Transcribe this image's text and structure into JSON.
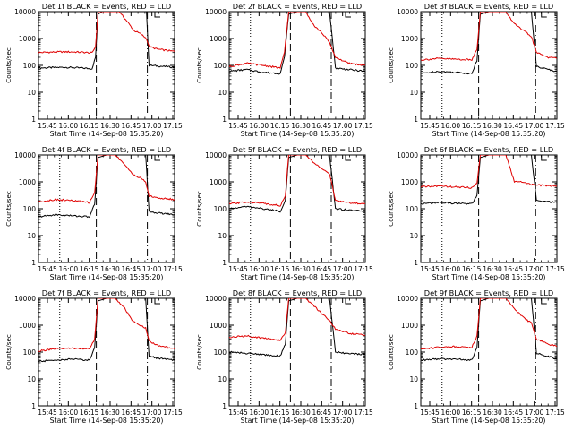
{
  "colors": {
    "events": "#000000",
    "lld": "#e00000",
    "axis": "#000000"
  },
  "chart_data": [
    {
      "type": "line",
      "title": "Det 1f BLACK = Events, RED = LLD",
      "xlabel": "Start Time (14-Sep-08 15:35:20)",
      "ylabel": "Counts/sec",
      "yscale": "log",
      "ylim": [
        1,
        10000
      ],
      "xlim": [
        15.7,
        17.3
      ],
      "xticks": [
        "15:45",
        "16:00",
        "16:15",
        "16:30",
        "16:45",
        "17:00",
        "17:15"
      ],
      "yticks": [
        "1",
        "10",
        "100",
        "1000",
        "10000"
      ],
      "dotted_line_x": 16.0,
      "dashed_line_x": 16.38,
      "dashdot_line_x": 16.98,
      "marker_x": 17.1,
      "series": [
        {
          "name": "Events",
          "x": [
            15.7,
            16.0,
            16.2,
            16.33,
            16.37,
            16.4,
            16.45,
            16.55,
            16.65,
            16.75,
            16.82,
            16.9,
            16.97,
            17.0,
            17.1,
            17.3
          ],
          "y": [
            80,
            85,
            80,
            75,
            200,
            8000,
            10000,
            10000,
            10000,
            10000,
            10000,
            10000,
            10000,
            100,
            95,
            85
          ]
        },
        {
          "name": "LLD",
          "x": [
            15.7,
            16.0,
            16.2,
            16.33,
            16.37,
            16.4,
            16.45,
            16.55,
            16.65,
            16.75,
            16.82,
            16.9,
            16.97,
            17.0,
            17.1,
            17.3
          ],
          "y": [
            300,
            320,
            310,
            290,
            500,
            10000,
            10000,
            10000,
            10000,
            4000,
            2000,
            1500,
            1000,
            500,
            400,
            330
          ]
        }
      ]
    },
    {
      "type": "line",
      "title": "Det 2f BLACK = Events, RED = LLD",
      "xlabel": "Start Time (14-Sep-08 15:35:20)",
      "ylabel": "Counts/sec",
      "yscale": "log",
      "ylim": [
        1,
        10000
      ],
      "xlim": [
        15.7,
        17.3
      ],
      "xticks": [
        "15:45",
        "16:00",
        "16:15",
        "16:30",
        "16:45",
        "17:00",
        "17:15"
      ],
      "yticks": [
        "1",
        "10",
        "100",
        "1000",
        "10000"
      ],
      "dotted_line_x": 15.95,
      "dashed_line_x": 16.42,
      "dashdot_line_x": 16.9,
      "marker_x": 17.1,
      "series": [
        {
          "name": "Events",
          "x": [
            15.7,
            15.9,
            16.1,
            16.3,
            16.35,
            16.4,
            16.5,
            16.6,
            16.7,
            16.8,
            16.88,
            16.95,
            17.1,
            17.3
          ],
          "y": [
            60,
            70,
            55,
            50,
            200,
            8000,
            10000,
            10000,
            10000,
            10000,
            10000,
            80,
            70,
            60
          ]
        },
        {
          "name": "LLD",
          "x": [
            15.7,
            15.9,
            16.1,
            16.3,
            16.35,
            16.4,
            16.5,
            16.6,
            16.7,
            16.8,
            16.88,
            16.95,
            17.1,
            17.3
          ],
          "y": [
            90,
            120,
            100,
            80,
            300,
            10000,
            10000,
            10000,
            3000,
            1500,
            700,
            200,
            120,
            100
          ]
        }
      ]
    },
    {
      "type": "line",
      "title": "Det 3f BLACK = Events, RED = LLD",
      "xlabel": "Start Time (14-Sep-08 15:35:20)",
      "ylabel": "Counts/sec",
      "yscale": "log",
      "ylim": [
        1,
        10000
      ],
      "xlim": [
        15.7,
        17.3
      ],
      "xticks": [
        "15:45",
        "16:00",
        "16:15",
        "16:30",
        "16:45",
        "17:00",
        "17:15"
      ],
      "yticks": [
        "1",
        "10",
        "100",
        "1000",
        "10000"
      ],
      "dotted_line_x": 15.95,
      "dashed_line_x": 16.38,
      "dashdot_line_x": 17.05,
      "marker_x": 17.15,
      "series": [
        {
          "name": "Events",
          "x": [
            15.7,
            15.9,
            16.1,
            16.3,
            16.36,
            16.4,
            16.5,
            16.6,
            16.7,
            16.8,
            16.9,
            17.0,
            17.06,
            17.2,
            17.3
          ],
          "y": [
            50,
            60,
            55,
            50,
            150,
            8000,
            10000,
            10000,
            10000,
            10000,
            10000,
            10000,
            90,
            70,
            60
          ]
        },
        {
          "name": "LLD",
          "x": [
            15.7,
            15.9,
            16.1,
            16.3,
            16.36,
            16.4,
            16.5,
            16.6,
            16.7,
            16.8,
            16.9,
            17.0,
            17.06,
            17.2,
            17.3
          ],
          "y": [
            160,
            180,
            170,
            160,
            400,
            10000,
            10000,
            10000,
            10000,
            3500,
            2000,
            1200,
            300,
            200,
            180
          ]
        }
      ]
    },
    {
      "type": "line",
      "title": "Det 4f BLACK = Events, RED = LLD",
      "xlabel": "Start Time (14-Sep-08 15:35:20)",
      "ylabel": "Counts/sec",
      "yscale": "log",
      "ylim": [
        1,
        10000
      ],
      "xlim": [
        15.7,
        17.3
      ],
      "xticks": [
        "15:45",
        "16:00",
        "16:15",
        "16:30",
        "16:45",
        "17:00",
        "17:15"
      ],
      "yticks": [
        "1",
        "10",
        "100",
        "1000",
        "10000"
      ],
      "dotted_line_x": 15.95,
      "dashed_line_x": 16.38,
      "dashdot_line_x": 16.98,
      "marker_x": 17.1,
      "series": [
        {
          "name": "Events",
          "x": [
            15.7,
            15.9,
            16.1,
            16.3,
            16.36,
            16.4,
            16.5,
            16.6,
            16.7,
            16.8,
            16.88,
            16.96,
            17.0,
            17.1,
            17.3
          ],
          "y": [
            50,
            60,
            55,
            50,
            150,
            8000,
            10000,
            10000,
            10000,
            10000,
            10000,
            10000,
            80,
            70,
            60
          ]
        },
        {
          "name": "LLD",
          "x": [
            15.7,
            15.9,
            16.1,
            16.3,
            16.36,
            16.4,
            16.5,
            16.6,
            16.7,
            16.8,
            16.88,
            16.96,
            17.0,
            17.1,
            17.3
          ],
          "y": [
            180,
            220,
            200,
            170,
            400,
            10000,
            10000,
            10000,
            5000,
            2000,
            1500,
            1000,
            300,
            250,
            220
          ]
        }
      ]
    },
    {
      "type": "line",
      "title": "Det 5f BLACK = Events, RED = LLD",
      "xlabel": "Start Time (14-Sep-08 15:35:20)",
      "ylabel": "Counts/sec",
      "yscale": "log",
      "ylim": [
        1,
        10000
      ],
      "xlim": [
        15.7,
        17.3
      ],
      "xticks": [
        "15:45",
        "16:00",
        "16:15",
        "16:30",
        "16:45",
        "17:00",
        "17:15"
      ],
      "yticks": [
        "1",
        "10",
        "100",
        "1000",
        "10000"
      ],
      "dotted_line_x": 15.95,
      "dashed_line_x": 16.42,
      "dashdot_line_x": 16.9,
      "marker_x": 17.1,
      "series": [
        {
          "name": "Events",
          "x": [
            15.7,
            15.9,
            16.1,
            16.3,
            16.36,
            16.4,
            16.5,
            16.6,
            16.7,
            16.8,
            16.88,
            16.95,
            17.1,
            17.3
          ],
          "y": [
            100,
            120,
            100,
            80,
            200,
            8000,
            10000,
            10000,
            10000,
            10000,
            10000,
            100,
            90,
            80
          ]
        },
        {
          "name": "LLD",
          "x": [
            15.7,
            15.9,
            16.1,
            16.3,
            16.36,
            16.4,
            16.5,
            16.6,
            16.7,
            16.8,
            16.88,
            16.95,
            17.1,
            17.3
          ],
          "y": [
            150,
            180,
            160,
            130,
            300,
            10000,
            10000,
            10000,
            5000,
            3000,
            2000,
            200,
            170,
            150
          ]
        }
      ]
    },
    {
      "type": "line",
      "title": "Det 6f BLACK = Events, RED = LLD",
      "xlabel": "Start Time (14-Sep-08 15:35:20)",
      "ylabel": "Counts/sec",
      "yscale": "log",
      "ylim": [
        1,
        10000
      ],
      "xlim": [
        15.7,
        17.3
      ],
      "xticks": [
        "15:45",
        "16:00",
        "16:15",
        "16:30",
        "16:45",
        "17:00",
        "17:15"
      ],
      "yticks": [
        "1",
        "10",
        "100",
        "1000",
        "10000"
      ],
      "dotted_line_x": 15.95,
      "dashed_line_x": 16.38,
      "dashdot_line_x": 17.05,
      "marker_x": 17.15,
      "series": [
        {
          "name": "Events",
          "x": [
            15.7,
            15.9,
            16.1,
            16.3,
            16.36,
            16.4,
            16.5,
            16.6,
            16.7,
            16.8,
            16.9,
            17.0,
            17.06,
            17.2,
            17.3
          ],
          "y": [
            150,
            170,
            160,
            150,
            300,
            8000,
            10000,
            10000,
            10000,
            10000,
            10000,
            10000,
            200,
            180,
            170
          ]
        },
        {
          "name": "LLD",
          "x": [
            15.7,
            15.9,
            16.1,
            16.3,
            16.36,
            16.4,
            16.5,
            16.6,
            16.7,
            16.8,
            16.9,
            17.0,
            17.06,
            17.2,
            17.3
          ],
          "y": [
            650,
            700,
            650,
            600,
            900,
            10000,
            10000,
            10000,
            10000,
            1000,
            1000,
            800,
            750,
            720,
            700
          ]
        }
      ]
    },
    {
      "type": "line",
      "title": "Det 7f BLACK = Events, RED = LLD",
      "xlabel": "Start Time (14-Sep-08 15:35:20)",
      "ylabel": "Counts/sec",
      "yscale": "log",
      "ylim": [
        1,
        10000
      ],
      "xlim": [
        15.7,
        17.3
      ],
      "xticks": [
        "15:45",
        "16:00",
        "16:15",
        "16:30",
        "16:45",
        "17:00",
        "17:15"
      ],
      "yticks": [
        "1",
        "10",
        "100",
        "1000",
        "10000"
      ],
      "dotted_line_x": 15.95,
      "dashed_line_x": 16.38,
      "dashdot_line_x": 16.98,
      "marker_x": 17.1,
      "series": [
        {
          "name": "Events",
          "x": [
            15.7,
            15.9,
            16.1,
            16.3,
            16.36,
            16.4,
            16.5,
            16.6,
            16.7,
            16.8,
            16.88,
            16.96,
            17.0,
            17.1,
            17.3
          ],
          "y": [
            45,
            50,
            55,
            50,
            150,
            8000,
            10000,
            10000,
            10000,
            10000,
            10000,
            10000,
            70,
            60,
            50
          ]
        },
        {
          "name": "LLD",
          "x": [
            15.7,
            15.9,
            16.1,
            16.3,
            16.36,
            16.4,
            16.5,
            16.6,
            16.7,
            16.8,
            16.88,
            16.96,
            17.0,
            17.1,
            17.3
          ],
          "y": [
            110,
            130,
            140,
            130,
            300,
            10000,
            10000,
            10000,
            5000,
            1500,
            1000,
            800,
            250,
            180,
            130
          ]
        }
      ]
    },
    {
      "type": "line",
      "title": "Det 8f BLACK = Events, RED = LLD",
      "xlabel": "Start Time (14-Sep-08 15:35:20)",
      "ylabel": "Counts/sec",
      "yscale": "log",
      "ylim": [
        1,
        10000
      ],
      "xlim": [
        15.7,
        17.3
      ],
      "xticks": [
        "15:45",
        "16:00",
        "16:15",
        "16:30",
        "16:45",
        "17:00",
        "17:15"
      ],
      "yticks": [
        "1",
        "10",
        "100",
        "1000",
        "10000"
      ],
      "dotted_line_x": 15.95,
      "dashed_line_x": 16.42,
      "dashdot_line_x": 16.9,
      "marker_x": 17.1,
      "series": [
        {
          "name": "Events",
          "x": [
            15.7,
            15.9,
            16.1,
            16.3,
            16.36,
            16.4,
            16.5,
            16.6,
            16.7,
            16.8,
            16.88,
            16.95,
            17.1,
            17.3
          ],
          "y": [
            100,
            90,
            80,
            70,
            200,
            8000,
            10000,
            10000,
            10000,
            10000,
            10000,
            100,
            90,
            80
          ]
        },
        {
          "name": "LLD",
          "x": [
            15.7,
            15.9,
            16.1,
            16.3,
            16.36,
            16.4,
            16.5,
            16.6,
            16.7,
            16.8,
            16.88,
            16.95,
            17.1,
            17.3
          ],
          "y": [
            350,
            400,
            330,
            280,
            500,
            10000,
            10000,
            10000,
            5000,
            2500,
            1500,
            700,
            500,
            420
          ]
        }
      ]
    },
    {
      "type": "line",
      "title": "Det 9f BLACK = Events, RED = LLD",
      "xlabel": "Start Time (14-Sep-08 15:35:20)",
      "ylabel": "Counts/sec",
      "yscale": "log",
      "ylim": [
        1,
        10000
      ],
      "xlim": [
        15.7,
        17.3
      ],
      "xticks": [
        "15:45",
        "16:00",
        "16:15",
        "16:30",
        "16:45",
        "17:00",
        "17:15"
      ],
      "yticks": [
        "1",
        "10",
        "100",
        "1000",
        "10000"
      ],
      "dotted_line_x": 15.95,
      "dashed_line_x": 16.38,
      "dashdot_line_x": 17.05,
      "marker_x": 17.15,
      "series": [
        {
          "name": "Events",
          "x": [
            15.7,
            15.9,
            16.1,
            16.3,
            16.36,
            16.4,
            16.5,
            16.6,
            16.7,
            16.8,
            16.9,
            17.0,
            17.06,
            17.2,
            17.3
          ],
          "y": [
            50,
            55,
            55,
            50,
            150,
            8000,
            10000,
            10000,
            10000,
            10000,
            10000,
            10000,
            90,
            70,
            55
          ]
        },
        {
          "name": "LLD",
          "x": [
            15.7,
            15.9,
            16.1,
            16.3,
            16.36,
            16.4,
            16.5,
            16.6,
            16.7,
            16.8,
            16.9,
            17.0,
            17.06,
            17.2,
            17.3
          ],
          "y": [
            130,
            150,
            160,
            150,
            400,
            10000,
            10000,
            10000,
            10000,
            4000,
            2000,
            1200,
            300,
            200,
            160
          ]
        }
      ]
    }
  ]
}
